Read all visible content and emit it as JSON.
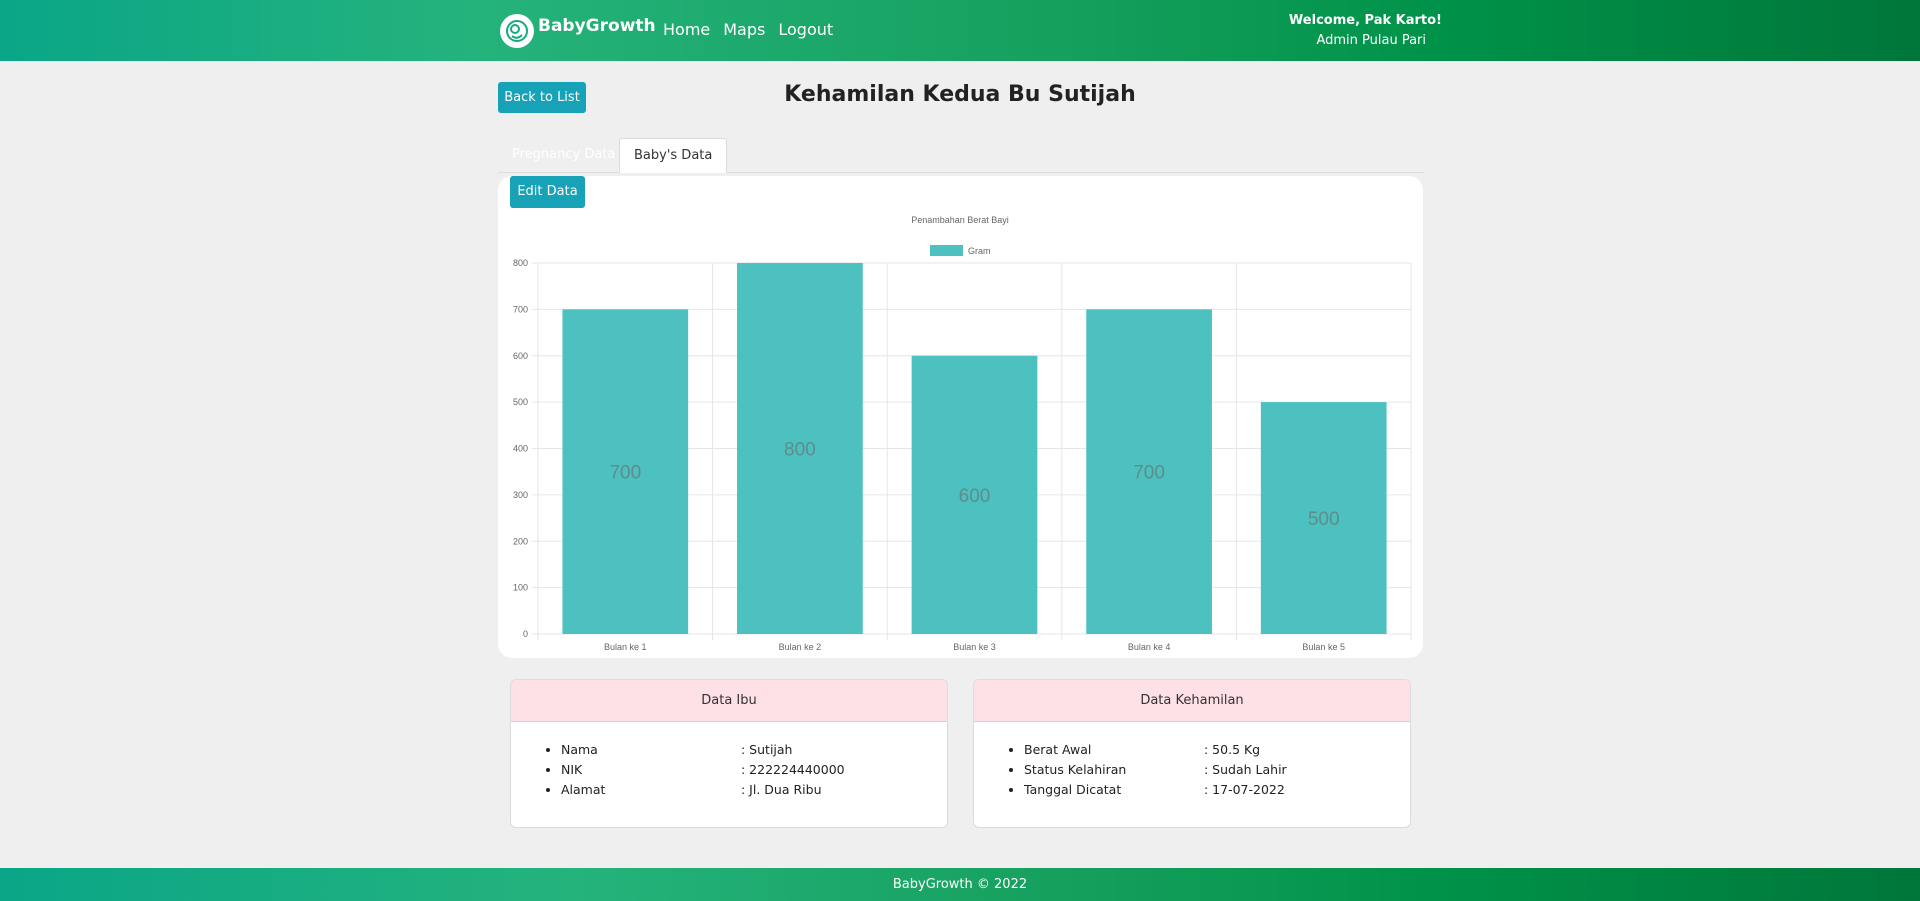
{
  "navbar": {
    "brand": "BabyGrowth",
    "links": [
      "Home",
      "Maps",
      "Logout"
    ],
    "welcome": "Welcome, Pak Karto!",
    "role": "Admin Pulau Pari"
  },
  "header": {
    "back_label": "Back to List",
    "title": "Kehamilan Kedua Bu Sutijah"
  },
  "tabs": [
    {
      "label": "Pregnancy Data",
      "active": false
    },
    {
      "label": "Baby's Data",
      "active": true
    }
  ],
  "edit_label": "Edit Data",
  "chart_data": {
    "type": "bar",
    "title": "Penambahan Berat Bayi",
    "legend": "Gram",
    "legend_position": "top",
    "categories": [
      "Bulan ke 1",
      "Bulan ke 2",
      "Bulan ke 3",
      "Bulan ke 4",
      "Bulan ke 5"
    ],
    "values": [
      700,
      800,
      600,
      700,
      500
    ],
    "yticks": [
      "0",
      "100",
      "200",
      "300",
      "400",
      "500",
      "600",
      "700",
      "800"
    ],
    "ylim": [
      0,
      800
    ],
    "grid": true,
    "bar_color": "#4dc0c0"
  },
  "ibu": {
    "title": "Data Ibu",
    "rows": [
      {
        "k": "Nama",
        "v": ": Sutijah"
      },
      {
        "k": "NIK",
        "v": ": 222224440000"
      },
      {
        "k": "Alamat",
        "v": ": Jl. Dua Ribu"
      }
    ]
  },
  "kehamilan": {
    "title": "Data Kehamilan",
    "rows": [
      {
        "k": "Berat Awal",
        "v": ": 50.5 Kg"
      },
      {
        "k": "Status Kelahiran",
        "v": ": Sudah Lahir"
      },
      {
        "k": "Tanggal Dicatat",
        "v": ": 17-07-2022"
      }
    ]
  },
  "footer": "BabyGrowth © 2022"
}
